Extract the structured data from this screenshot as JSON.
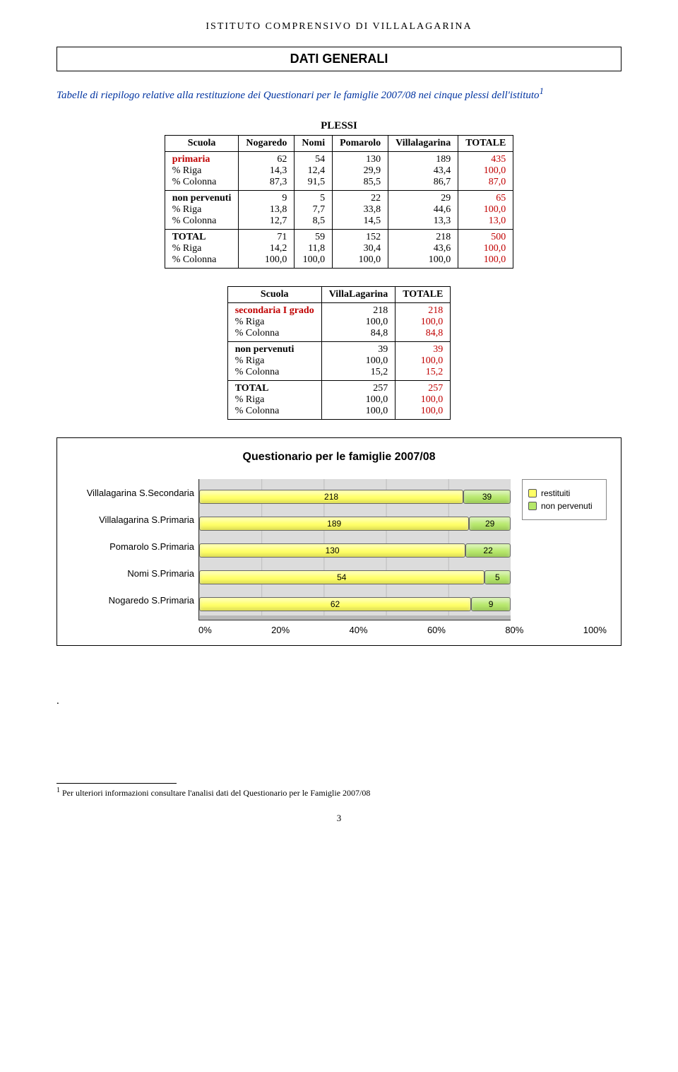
{
  "header": {
    "institution": "ISTITUTO COMPRENSIVO DI VILLALAGARINA"
  },
  "title": "DATI GENERALI",
  "intro_prefix": "Tabelle di riepilogo  relative alla restituzione dei Questionari per le famiglie 2007/08 nei cinque plessi dell'istituto",
  "intro_sup": "1",
  "table1": {
    "super_header": "PLESSI",
    "columns": [
      "Scuola",
      "Nogaredo",
      "Nomi",
      "Pomarolo",
      "Villalagarina",
      "TOTALE"
    ],
    "rows": [
      {
        "label": "primaria",
        "class": "primaria-hd",
        "sub": [
          "% Riga",
          "% Colonna"
        ],
        "cells": [
          [
            "62",
            "14,3",
            "87,3"
          ],
          [
            "54",
            "12,4",
            "91,5"
          ],
          [
            "130",
            "29,9",
            "85,5"
          ],
          [
            "189",
            "43,4",
            "86,7"
          ],
          [
            "435",
            "100,0",
            "87,0"
          ]
        ],
        "totale_red": true
      },
      {
        "label": "non pervenuti",
        "sub": [
          "% Riga",
          "% Colonna"
        ],
        "cells": [
          [
            "9",
            "13,8",
            "12,7"
          ],
          [
            "5",
            "7,7",
            "8,5"
          ],
          [
            "22",
            "33,8",
            "14,5"
          ],
          [
            "29",
            "44,6",
            "13,3"
          ],
          [
            "65",
            "100,0",
            "13,0"
          ]
        ],
        "totale_red": true
      },
      {
        "label": "TOTAL",
        "sub": [
          "% Riga",
          "% Colonna"
        ],
        "cells": [
          [
            "71",
            "14,2",
            "100,0"
          ],
          [
            "59",
            "11,8",
            "100,0"
          ],
          [
            "152",
            "30,4",
            "100,0"
          ],
          [
            "218",
            "43,6",
            "100,0"
          ],
          [
            "500",
            "100,0",
            "100,0"
          ]
        ],
        "totale_red": true
      }
    ]
  },
  "table2": {
    "columns": [
      "Scuola",
      "VillaLagarina",
      "TOTALE"
    ],
    "rows": [
      {
        "label": "secondaria I grado",
        "class": "secondaria-hd",
        "sub": [
          "% Riga",
          "% Colonna"
        ],
        "cells": [
          [
            "218",
            "100,0",
            "84,8"
          ],
          [
            "218",
            "100,0",
            "84,8"
          ]
        ],
        "totale_red": true
      },
      {
        "label": "non pervenuti",
        "sub": [
          "% Riga",
          "% Colonna"
        ],
        "cells": [
          [
            "39",
            "100,0",
            "15,2"
          ],
          [
            "39",
            "100,0",
            "15,2"
          ]
        ],
        "totale_red": true
      },
      {
        "label": "TOTAL",
        "sub": [
          "% Riga",
          "% Colonna"
        ],
        "cells": [
          [
            "257",
            "100,0",
            "100,0"
          ],
          [
            "257",
            "100,0",
            "100,0"
          ]
        ],
        "totale_red": true
      }
    ]
  },
  "chart": {
    "title": "Questionario per le famiglie 2007/08",
    "type": "stacked-bar-horizontal-100pct",
    "categories": [
      "Villalagarina S.Secondaria",
      "Villalagarina S.Primaria",
      "Pomarolo S.Primaria",
      "Nomi S.Primaria",
      "Nogaredo S.Primaria"
    ],
    "series": [
      {
        "name": "restituiti",
        "color": "#ffff66",
        "values": [
          218,
          189,
          130,
          54,
          62
        ]
      },
      {
        "name": "non pervenuti",
        "color": "#b6e86a",
        "values": [
          39,
          29,
          22,
          5,
          9
        ]
      }
    ],
    "x_ticks": [
      "0%",
      "20%",
      "40%",
      "60%",
      "80%",
      "100%"
    ],
    "background_color": "#dcdcdc",
    "grid_color": "#bdbdbd",
    "bar_border_color": "#666666",
    "label_fontsize": 13,
    "title_fontsize": 16,
    "title_fontweight": "bold"
  },
  "footnote": {
    "marker": "1",
    "text": " Per ulteriori informazioni consultare l'analisi dati del Questionario per le Famiglie 2007/08"
  },
  "page_number": "3"
}
